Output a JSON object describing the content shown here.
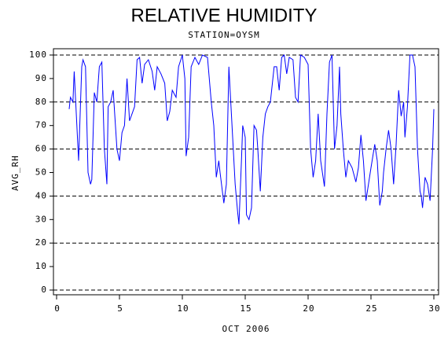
{
  "chart_data": {
    "type": "line",
    "title": "RELATIVE HUMIDITY",
    "subtitle": "STATION=OYSM",
    "x_label": "OCT 2006",
    "y_label": "AVG_RH",
    "xlim": [
      0,
      30
    ],
    "xticks": [
      0,
      5,
      10,
      15,
      20,
      25,
      30
    ],
    "ylim": [
      0,
      100
    ],
    "yticks": [
      0,
      10,
      20,
      30,
      40,
      50,
      60,
      70,
      80,
      90,
      100
    ],
    "ygrid": [
      0,
      20,
      40,
      60,
      80,
      100
    ],
    "series": [
      {
        "name": "AVG_RH",
        "color": "#0000ff",
        "x": [
          1.0,
          1.1,
          1.3,
          1.4,
          1.75,
          2.0,
          2.1,
          2.3,
          2.5,
          2.7,
          2.8,
          3.0,
          3.2,
          3.4,
          3.6,
          3.8,
          4.0,
          4.1,
          4.3,
          4.5,
          4.8,
          5.0,
          5.2,
          5.4,
          5.6,
          5.8,
          6.0,
          6.2,
          6.4,
          6.6,
          6.8,
          7.0,
          7.3,
          7.6,
          7.8,
          8.0,
          8.3,
          8.6,
          8.8,
          9.0,
          9.2,
          9.5,
          9.7,
          10.0,
          10.2,
          10.3,
          10.5,
          10.7,
          11.0,
          11.3,
          11.6,
          12.0,
          12.3,
          12.5,
          12.7,
          12.9,
          13.0,
          13.3,
          13.5,
          13.7,
          13.9,
          14.0,
          14.2,
          14.4,
          14.5,
          14.7,
          14.8,
          15.0,
          15.1,
          15.3,
          15.5,
          15.7,
          15.9,
          16.0,
          16.2,
          16.4,
          16.6,
          16.8,
          17.0,
          17.3,
          17.5,
          17.7,
          17.9,
          18.1,
          18.3,
          18.5,
          18.8,
          19.0,
          19.2,
          19.4,
          19.7,
          20.0,
          20.2,
          20.4,
          20.6,
          20.8,
          21.0,
          21.3,
          21.5,
          21.7,
          21.9,
          22.1,
          22.3,
          22.5,
          22.6,
          22.8,
          23.0,
          23.2,
          23.5,
          23.8,
          24.0,
          24.2,
          24.4,
          24.6,
          24.8,
          25.0,
          25.3,
          25.5,
          25.7,
          25.9,
          26.0,
          26.2,
          26.4,
          26.6,
          26.8,
          27.0,
          27.2,
          27.4,
          27.6,
          27.7,
          27.9,
          28.1,
          28.3,
          28.5,
          28.7,
          28.9,
          29.0,
          29.1,
          29.3,
          29.5,
          29.7,
          29.9,
          30.0
        ],
        "values": [
          77,
          82,
          80,
          93,
          55,
          95,
          98,
          95,
          50,
          45,
          47,
          84,
          80,
          95,
          97,
          60,
          45,
          78,
          80,
          85,
          60,
          55,
          67,
          70,
          90,
          72,
          75,
          78,
          98,
          99,
          88,
          96,
          98,
          93,
          85,
          95,
          92,
          88,
          72,
          76,
          85,
          82,
          95,
          100,
          90,
          57,
          65,
          95,
          99,
          96,
          100,
          99,
          80,
          70,
          48,
          55,
          50,
          37,
          45,
          95,
          75,
          65,
          45,
          33,
          28,
          55,
          70,
          65,
          32,
          30,
          35,
          70,
          68,
          60,
          42,
          65,
          75,
          78,
          80,
          95,
          95,
          85,
          99,
          100,
          92,
          99,
          98,
          82,
          80,
          100,
          99,
          96,
          60,
          48,
          55,
          75,
          55,
          44,
          75,
          97,
          100,
          60,
          70,
          95,
          75,
          60,
          48,
          55,
          52,
          46,
          52,
          66,
          55,
          38,
          45,
          52,
          62,
          55,
          36,
          42,
          50,
          60,
          68,
          60,
          45,
          62,
          85,
          74,
          80,
          65,
          78,
          100,
          100,
          95,
          60,
          42,
          40,
          35,
          48,
          45,
          38,
          60,
          77
        ]
      }
    ]
  }
}
